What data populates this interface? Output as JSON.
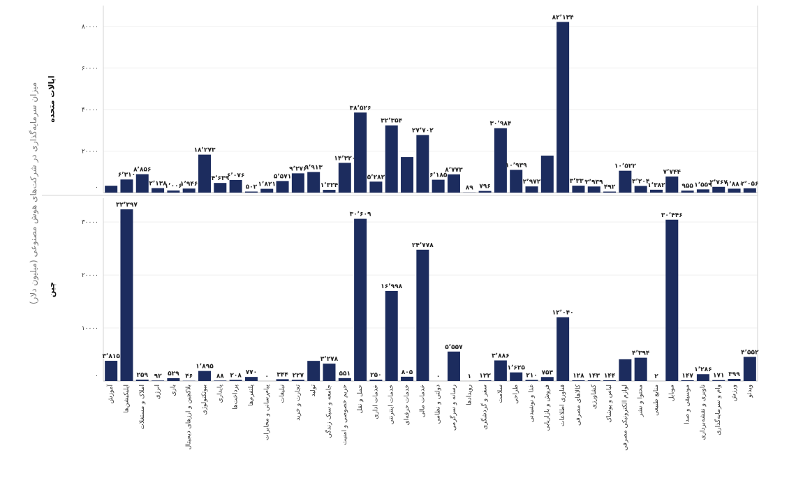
{
  "chart_data": {
    "type": "bar",
    "ylabel": "میزان سرمایه‌گذاری در شرکت‌های هوش مصنوعی (میلیون دلار)",
    "bar_color": "#1c2c5e",
    "grid": true,
    "categories": [
      "آموزش",
      "اپلیکیشن‌ها",
      "املاک و مستغلات",
      "انرژی",
      "بازی",
      "بلاکچین و ارزهای دیجیتال",
      "بیوتکنولوژی",
      "پایداری",
      "پرداخت‌ها",
      "پلتفرم‌ها",
      "پیام‌رسانی و مخابرات",
      "تبلیغات",
      "تجارت و خرید",
      "تولید",
      "جامعه و سبک زندگی",
      "حریم خصوصی و امنیت",
      "حمل و نقل",
      "خدمات اداری",
      "خدمات اینترنتی",
      "خدمات حرفه‌ای",
      "خدمات مالی",
      "دولتی و نظامی",
      "رسانه و سرگرمی",
      "رویدادها",
      "سفر و گردشگری",
      "سلامت",
      "طراحی",
      "غذا و نوشیدنی",
      "فروش و بازاریابی",
      "فناوری اطلاعات",
      "کالاهای مصرفی",
      "کشاورزی",
      "لباس و پوشاک",
      "لوازم الکترونیکی مصرفی",
      "محتوا و نشر",
      "منابع طبیعی",
      "موبایل",
      "موسیقی و صدا",
      "ناوبری و نقشه‌برداری",
      "وام و سرمایه‌گذاری",
      "ورزش",
      "ویدئو"
    ],
    "series": [
      {
        "name": "ایالات متحده",
        "ylim": [
          0,
          90000
        ],
        "yticks": [
          0,
          20000,
          40000,
          60000,
          80000
        ],
        "ytick_labels": [
          "۰",
          "۲۰۰۰۰",
          "۴۰۰۰۰",
          "۶۰۰۰۰",
          "۸۰۰۰۰"
        ],
        "values": [
          3300,
          6310,
          8856,
          2138,
          1006,
          1946,
          18273,
          4639,
          6076,
          502,
          1821,
          5571,
          9276,
          9913,
          1324,
          14320,
          38526,
          5282,
          32354,
          17100,
          27702,
          6185,
          8773,
          89,
          796,
          30984,
          10939,
          2972,
          17800,
          82134,
          3330,
          2939,
          492,
          10522,
          3204,
          1382,
          7744,
          955,
          1559,
          2767,
          1880,
          2056
        ],
        "labels": [
          null,
          "۶٬۳۱۰",
          "۸٬۸۵۶",
          "۲٬۱۳۸",
          "۱٬۰۰۶",
          "۱٬۹۴۶",
          "۱۸٬۲۷۳",
          "۴٬۶۳۹",
          "۶٬۰۷۶",
          "۵۰۲",
          "۱٬۸۲۱",
          "۵٬۵۷۱",
          "۹٬۲۷۶",
          "۹٬۹۱۳",
          "۱٬۳۲۴",
          "۱۴٬۳۲۰",
          "۳۸٬۵۲۶",
          "۵٬۲۸۲",
          "۳۲٬۳۵۴",
          null,
          "۲۷٬۷۰۲",
          "۶٬۱۸۵",
          "۸٬۷۷۳",
          "۸۹",
          "۷۹۶",
          "۳۰٬۹۸۴",
          "۱۰٬۹۳۹",
          "۲٬۹۷۲",
          null,
          "۸۲٬۱۳۴",
          "۳٬۳۳۰",
          "۲٬۹۳۹",
          "۴۹۲",
          "۱۰٬۵۲۲",
          "۳٬۲۰۴",
          "۱٬۳۸۲",
          "۷٬۷۴۴",
          "۹۵۵",
          "۱٬۵۵۹",
          "۲٬۷۶۷",
          "۱٬۸۸۰",
          "۲٬۰۵۶"
        ]
      },
      {
        "name": "چین",
        "ylim": [
          0,
          34500
        ],
        "yticks": [
          0,
          10000,
          20000,
          30000
        ],
        "ytick_labels": [
          "۰",
          "۱۰۰۰۰",
          "۲۰۰۰۰",
          "۳۰۰۰۰"
        ],
        "values": [
          3815,
          32397,
          259,
          92,
          529,
          46,
          1895,
          88,
          208,
          770,
          0,
          344,
          227,
          3800,
          3278,
          551,
          30609,
          250,
          16998,
          805,
          24778,
          0,
          5557,
          1,
          122,
          3886,
          1625,
          210,
          753,
          12040,
          128,
          143,
          144,
          4100,
          4394,
          2,
          30446,
          147,
          1286,
          171,
          399,
          4552
        ],
        "labels": [
          "۳٬۸۱۵",
          "۳۲٬۳۹۷",
          "۲۵۹",
          "۹۲",
          "۵۲۹",
          "۴۶",
          "۱٬۸۹۵",
          "۸۸",
          "۲۰۸",
          "۷۷۰",
          "۰",
          "۳۴۴",
          "۲۲۷",
          null,
          "۳٬۲۷۸",
          "۵۵۱",
          "۳۰٬۶۰۹",
          "۲۵۰",
          "۱۶٬۹۹۸",
          "۸۰۵",
          "۲۴٬۷۷۸",
          "۰",
          "۵٬۵۵۷",
          "۱",
          "۱۲۲",
          "۳٬۸۸۶",
          "۱٬۶۲۵",
          "۲۱۰",
          "۷۵۳",
          "۱۲٬۰۴۰",
          "۱۲۸",
          "۱۴۳",
          "۱۴۴",
          null,
          "۴٬۳۹۴",
          "۲",
          "۳۰٬۴۴۶",
          "۱۴۷",
          "۱٬۲۸۶",
          "۱۷۱",
          "۳۹۹",
          "۴٬۵۵۲"
        ]
      }
    ]
  }
}
